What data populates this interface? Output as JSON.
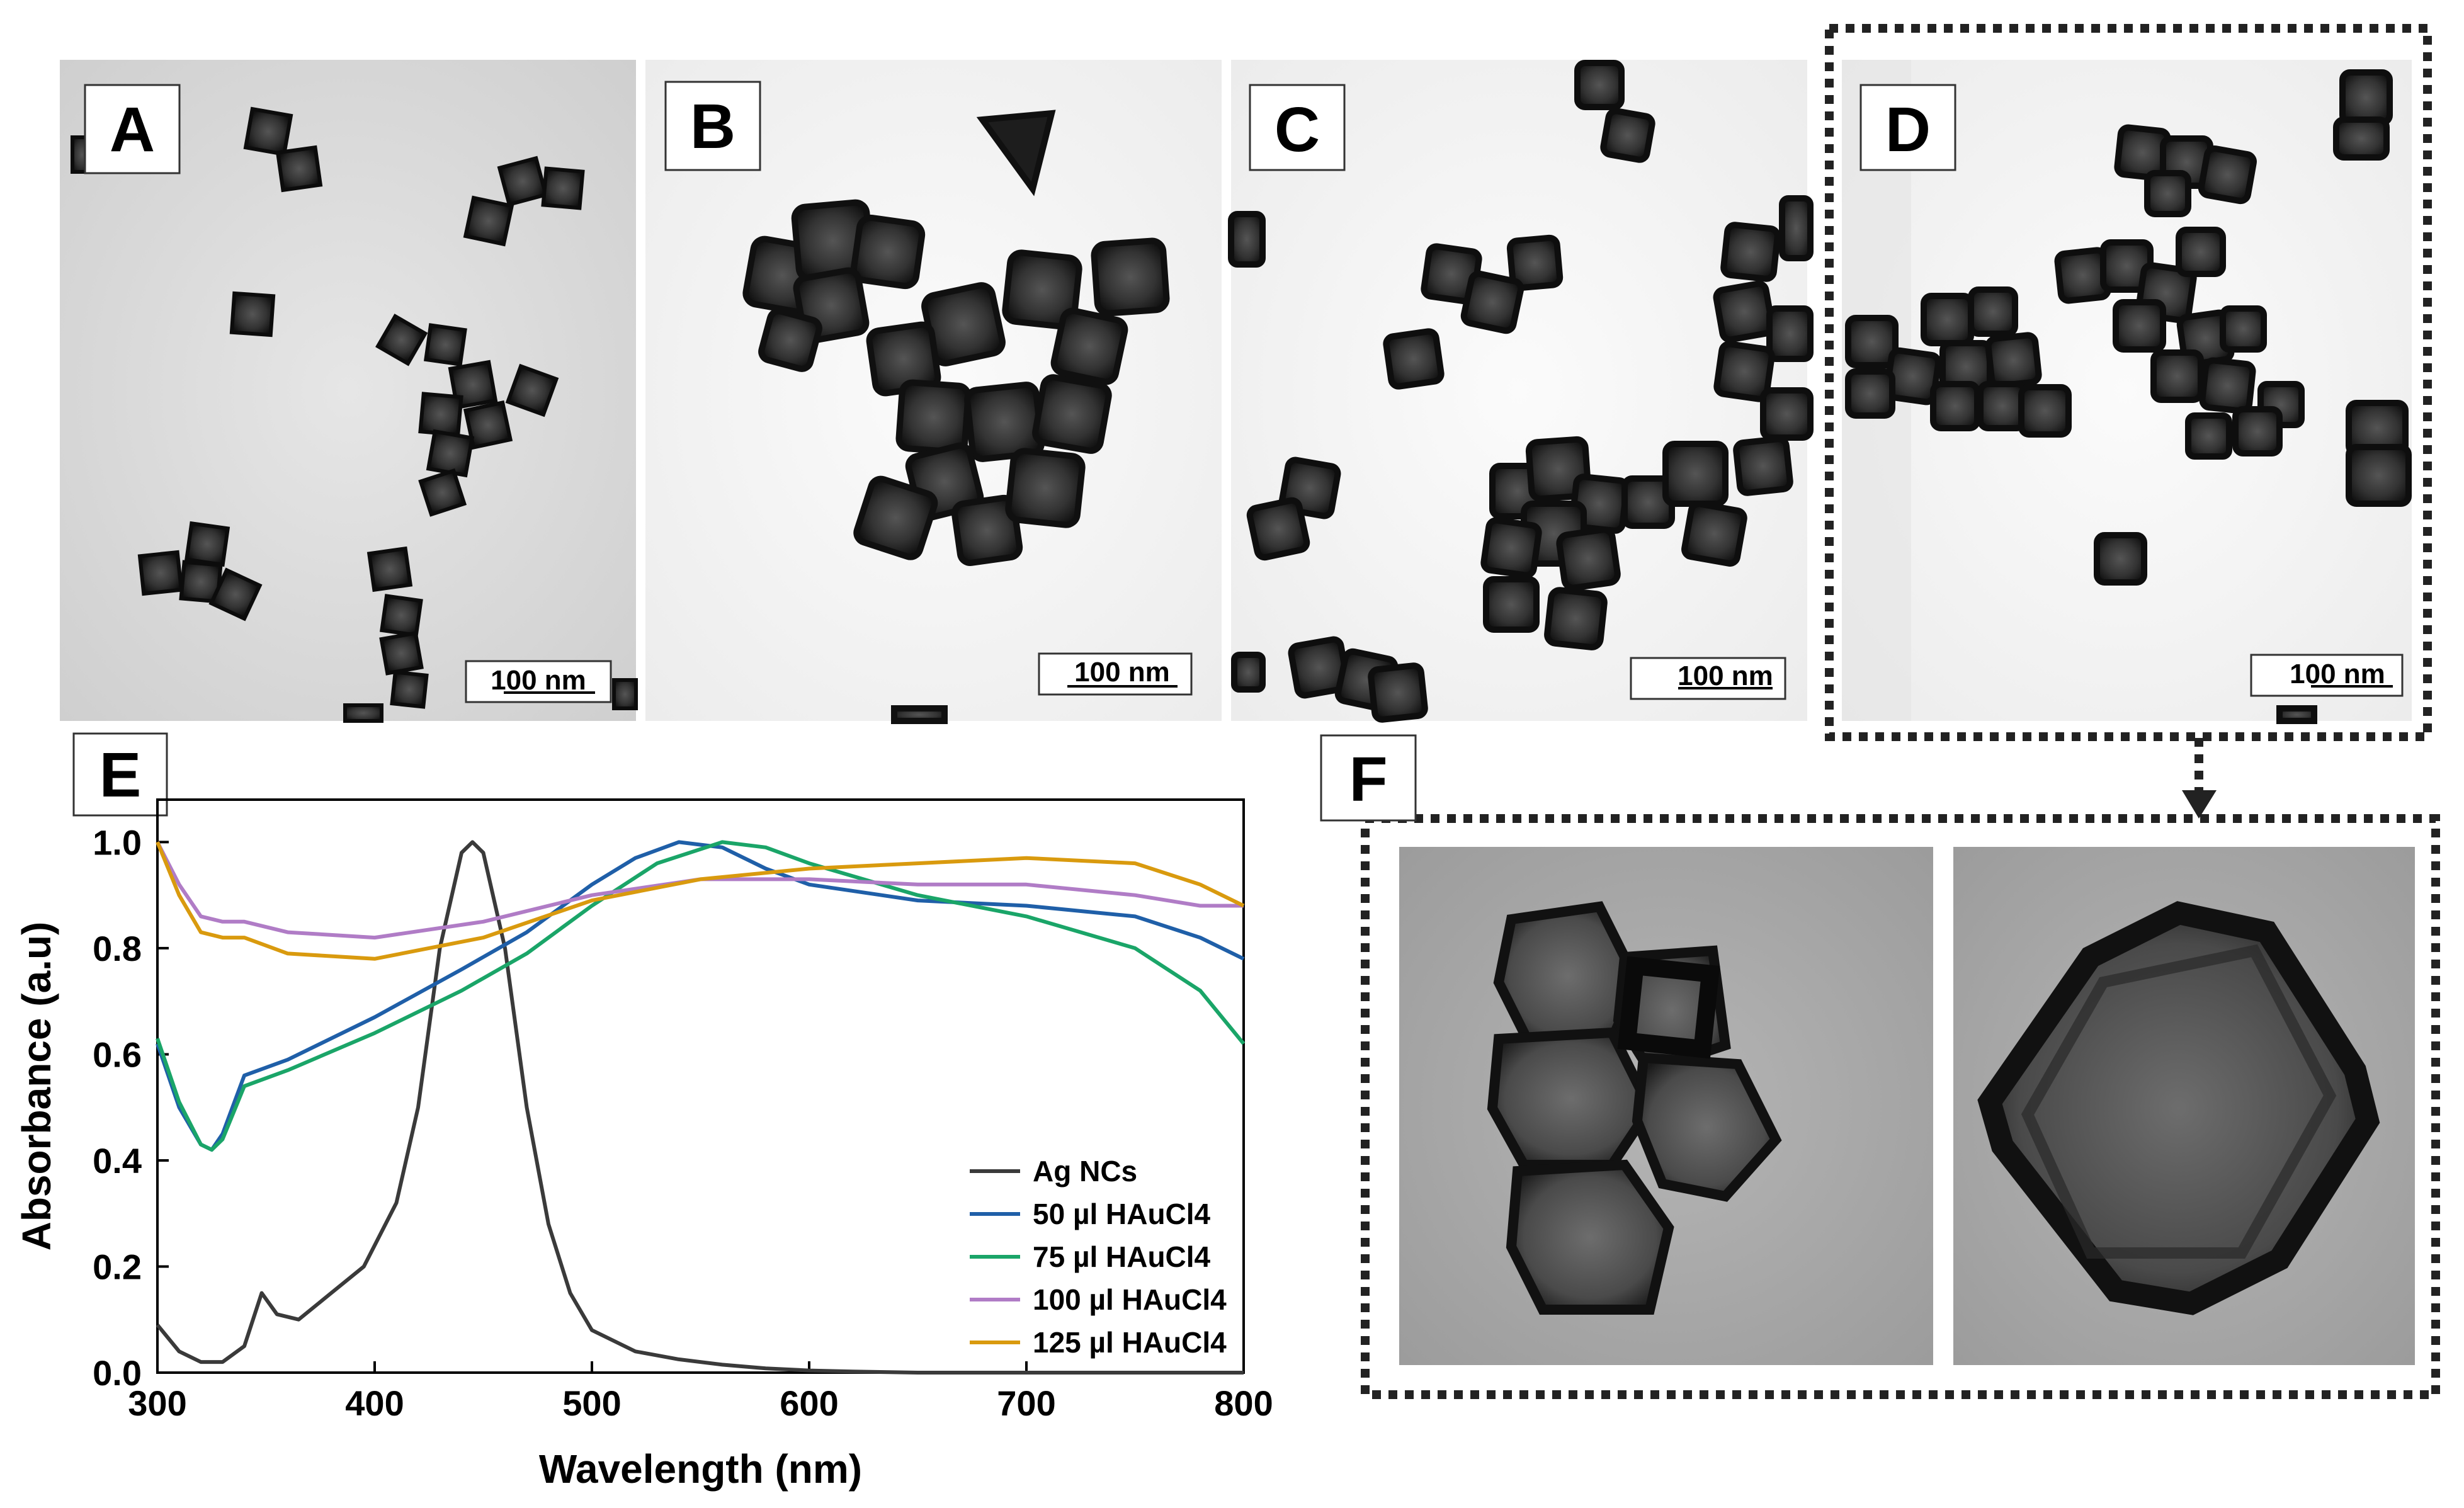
{
  "panels": {
    "A": {
      "label": "A",
      "scale": "100 nm"
    },
    "B": {
      "label": "B",
      "scale": "100 nm"
    },
    "C": {
      "label": "C",
      "scale": "100 nm"
    },
    "D": {
      "label": "D",
      "scale": "100 nm"
    },
    "E": {
      "label": "E"
    },
    "F": {
      "label": "F"
    }
  },
  "colors": {
    "tem_background": "#dcdcdc",
    "particle": "#2a2a2a",
    "hrtem_background": "#a9a9a9"
  },
  "chart_data": {
    "type": "line",
    "xlabel": "Wavelength (nm)",
    "ylabel": "Absorbance (a.u)",
    "xlim": [
      300,
      800
    ],
    "ylim": [
      0,
      1.08
    ],
    "xticks": [
      300,
      400,
      500,
      600,
      700,
      800
    ],
    "yticks": [
      0.0,
      0.2,
      0.4,
      0.6,
      0.8,
      1.0
    ],
    "ytick_labels": [
      "0.0",
      "0.2",
      "0.4",
      "0.6",
      "0.8",
      "1.0"
    ],
    "grid": false,
    "legend_position": "bottom-right",
    "series": [
      {
        "name": "Ag NCs",
        "color": "#3a3a3a",
        "x": [
          300,
          310,
          320,
          330,
          340,
          348,
          355,
          365,
          380,
          395,
          410,
          420,
          430,
          440,
          445,
          450,
          460,
          470,
          480,
          490,
          500,
          520,
          540,
          560,
          580,
          600,
          620,
          650,
          700,
          800
        ],
        "y": [
          0.09,
          0.04,
          0.02,
          0.02,
          0.05,
          0.15,
          0.11,
          0.1,
          0.15,
          0.2,
          0.32,
          0.5,
          0.8,
          0.98,
          1.0,
          0.98,
          0.8,
          0.5,
          0.28,
          0.15,
          0.08,
          0.04,
          0.025,
          0.015,
          0.008,
          0.004,
          0.002,
          0.0,
          0.0,
          0.0
        ]
      },
      {
        "name": "50 µl HAuCl4",
        "color": "#1f5fa8",
        "x": [
          300,
          310,
          320,
          325,
          330,
          340,
          360,
          400,
          440,
          470,
          500,
          520,
          540,
          560,
          580,
          600,
          650,
          700,
          750,
          780,
          800
        ],
        "y": [
          0.62,
          0.5,
          0.43,
          0.42,
          0.45,
          0.56,
          0.59,
          0.67,
          0.76,
          0.83,
          0.92,
          0.97,
          1.0,
          0.99,
          0.95,
          0.92,
          0.89,
          0.88,
          0.86,
          0.82,
          0.78
        ]
      },
      {
        "name": "75 µl HAuCl4",
        "color": "#1aa568",
        "x": [
          300,
          310,
          320,
          325,
          330,
          340,
          360,
          400,
          440,
          470,
          500,
          530,
          560,
          580,
          600,
          650,
          700,
          750,
          780,
          800
        ],
        "y": [
          0.63,
          0.51,
          0.43,
          0.42,
          0.44,
          0.54,
          0.57,
          0.64,
          0.72,
          0.79,
          0.88,
          0.96,
          1.0,
          0.99,
          0.96,
          0.9,
          0.86,
          0.8,
          0.72,
          0.62
        ]
      },
      {
        "name": "100 µl HAuCl4",
        "color": "#b07cc6",
        "x": [
          300,
          310,
          320,
          330,
          340,
          360,
          400,
          450,
          500,
          550,
          600,
          650,
          700,
          750,
          780,
          800
        ],
        "y": [
          1.0,
          0.92,
          0.86,
          0.85,
          0.85,
          0.83,
          0.82,
          0.85,
          0.9,
          0.93,
          0.93,
          0.92,
          0.92,
          0.9,
          0.88,
          0.88
        ]
      },
      {
        "name": "125 µl HAuCl4",
        "color": "#d99a0e",
        "x": [
          300,
          310,
          320,
          330,
          340,
          360,
          400,
          450,
          500,
          550,
          600,
          650,
          700,
          750,
          780,
          800
        ],
        "y": [
          1.0,
          0.9,
          0.83,
          0.82,
          0.82,
          0.79,
          0.78,
          0.82,
          0.89,
          0.93,
          0.95,
          0.96,
          0.97,
          0.96,
          0.92,
          0.88
        ]
      }
    ]
  }
}
